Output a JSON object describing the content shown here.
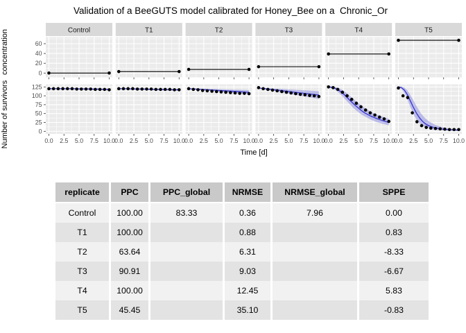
{
  "title": "Validation of a BeeGUTS model calibrated for Honey_Bee on a  Chronic_Or",
  "chart_data": {
    "type": "line",
    "title": "Validation of a BeeGUTS model calibrated for Honey_Bee on a  Chronic_Or",
    "xlabel": "Time [d]",
    "x_ticks": [
      "0.0",
      "2.5",
      "5.0",
      "7.5",
      "10.0"
    ],
    "top_row": {
      "ylabel": "concentration",
      "yticks": [
        0,
        20,
        40,
        60
      ],
      "ylim": [
        0,
        73
      ]
    },
    "bottom_row": {
      "ylabel": "Number of survivors",
      "yticks": [
        0,
        25,
        50,
        75,
        100,
        125
      ],
      "ylim": [
        0,
        132
      ]
    },
    "legend": "none",
    "grid": "white-on-grey",
    "obs_t": [
      0,
      0.77,
      1.54,
      2.31,
      3.08,
      3.85,
      4.62,
      5.38,
      6.15,
      6.92,
      7.69,
      8.46,
      9.23,
      10
    ],
    "facets": [
      {
        "label": "Control",
        "concentration": 0,
        "obs_n": [
          120,
          120,
          120,
          120,
          120,
          120,
          119,
          119,
          119,
          119,
          118,
          118,
          118,
          117
        ],
        "fit_t": [
          0,
          1,
          2,
          3,
          4,
          5,
          6,
          7,
          8,
          9,
          10
        ],
        "fit_median": [
          120,
          120,
          120,
          120,
          120,
          119.5,
          119.5,
          119,
          119,
          118.5,
          118
        ],
        "fit_lo": [
          119,
          119,
          118.5,
          118.5,
          118,
          117.5,
          117,
          116.5,
          116,
          115.5,
          115
        ],
        "fit_hi": [
          121,
          121,
          121,
          120.5,
          120.5,
          120.5,
          120,
          120,
          120,
          119.5,
          119.5
        ]
      },
      {
        "label": "T1",
        "concentration": 3,
        "obs_n": [
          120,
          120,
          120,
          120,
          119,
          119,
          119,
          119,
          118,
          118,
          118,
          118,
          117,
          117
        ],
        "fit_t": [
          0,
          1,
          2,
          3,
          4,
          5,
          6,
          7,
          8,
          9,
          10
        ],
        "fit_median": [
          120,
          120,
          119.5,
          119,
          119,
          118.5,
          118,
          118,
          117.5,
          117,
          117
        ],
        "fit_lo": [
          119,
          118.5,
          118,
          117.5,
          117,
          116.5,
          116,
          115.5,
          115,
          114.5,
          114
        ],
        "fit_hi": [
          121,
          121,
          120.5,
          120.5,
          120,
          120,
          119.5,
          119.5,
          119,
          119,
          118.5
        ]
      },
      {
        "label": "T2",
        "concentration": 7.5,
        "obs_n": [
          120,
          118,
          117,
          115,
          114,
          113,
          112,
          111,
          110,
          109,
          108,
          107,
          107,
          106
        ],
        "fit_t": [
          0,
          1,
          2,
          3,
          4,
          5,
          6,
          7,
          8,
          9,
          10
        ],
        "fit_median": [
          120,
          119,
          118,
          117,
          116,
          115,
          114,
          113,
          112,
          111,
          110
        ],
        "fit_lo": [
          119,
          117.5,
          116,
          114.5,
          113,
          111.5,
          110,
          108.5,
          107,
          105.5,
          104
        ],
        "fit_hi": [
          121,
          120.5,
          120,
          119.5,
          119,
          118.5,
          118,
          117.5,
          117,
          116.5,
          116
        ]
      },
      {
        "label": "T3",
        "concentration": 13,
        "obs_n": [
          123,
          120,
          118,
          116,
          114,
          112,
          110,
          108,
          106,
          104,
          103,
          101,
          100,
          98
        ],
        "fit_t": [
          0,
          1,
          2,
          3,
          4,
          5,
          6,
          7,
          8,
          9,
          10
        ],
        "fit_median": [
          122,
          120,
          118,
          116,
          114,
          112,
          110,
          108,
          106,
          104,
          102
        ],
        "fit_lo": [
          121,
          118,
          115,
          112,
          109,
          106,
          103,
          100,
          97,
          94,
          91
        ],
        "fit_hi": [
          123,
          122,
          121,
          120,
          119,
          118,
          117,
          116,
          115,
          114,
          113
        ]
      },
      {
        "label": "T4",
        "concentration": 39,
        "obs_n": [
          125,
          123,
          118,
          110,
          100,
          90,
          79,
          69,
          60,
          52,
          46,
          40,
          35,
          28
        ],
        "fit_t": [
          0,
          0.5,
          1,
          1.5,
          2,
          2.5,
          3,
          3.5,
          4,
          4.5,
          5,
          5.5,
          6,
          7,
          8,
          9,
          10
        ],
        "fit_median": [
          125,
          124,
          122,
          118,
          112,
          105,
          97,
          88,
          80,
          72,
          65,
          58,
          52,
          43,
          36,
          30,
          25
        ],
        "fit_lo": [
          124,
          122,
          118,
          112,
          104,
          95,
          86,
          77,
          68,
          60,
          53,
          47,
          42,
          33,
          26,
          21,
          17
        ],
        "fit_hi": [
          126,
          126,
          125,
          123,
          119,
          114,
          108,
          101,
          93,
          86,
          79,
          72,
          66,
          55,
          47,
          41,
          35
        ]
      },
      {
        "label": "T5",
        "concentration": 67,
        "obs_n": [
          122,
          100,
          95,
          52,
          27,
          16,
          11,
          9,
          8,
          7,
          6,
          5,
          5,
          5
        ],
        "fit_t": [
          0,
          0.5,
          1,
          1.5,
          2,
          2.5,
          3,
          3.5,
          4,
          4.5,
          5,
          6,
          7,
          8,
          9,
          10
        ],
        "fit_median": [
          125,
          123,
          116,
          103,
          85,
          67,
          51,
          38,
          28,
          21,
          16,
          10,
          7,
          5,
          4,
          3
        ],
        "fit_lo": [
          124,
          120,
          108,
          90,
          68,
          48,
          33,
          23,
          16,
          11,
          8,
          4,
          3,
          2,
          2,
          1
        ],
        "fit_hi": [
          126,
          126,
          123,
          115,
          102,
          87,
          71,
          57,
          45,
          36,
          29,
          19,
          13,
          9,
          7,
          6
        ]
      }
    ]
  },
  "table": {
    "headers": [
      "replicate",
      "PPC",
      "PPC_global",
      "NRMSE",
      "NRMSE_global",
      "SPPE"
    ],
    "rows": [
      [
        "Control",
        "100.00",
        "83.33",
        "0.36",
        "7.96",
        "0.00"
      ],
      [
        "T1",
        "100.00",
        "",
        "0.88",
        "",
        "0.83"
      ],
      [
        "T2",
        "63.64",
        "",
        "6.31",
        "",
        "-8.33"
      ],
      [
        "T3",
        "90.91",
        "",
        "9.03",
        "",
        "-6.67"
      ],
      [
        "T4",
        "100.00",
        "",
        "12.45",
        "",
        "5.83"
      ],
      [
        "T5",
        "45.45",
        "",
        "35.10",
        "",
        "-0.83"
      ]
    ]
  },
  "colors": {
    "fit_line": "#3434CE",
    "fit_ribbon": "rgba(70,70,215,0.30)",
    "obs_point": "#000000",
    "conc_line": "#000000",
    "panel_bg": "#EBEBEB",
    "strip_bg": "#D9D9D9",
    "gridline": "#FFFFFF",
    "tick_text": "#4D4D4D",
    "table_header_bg": "#C9C9C9",
    "table_row_light": "#F1F1F1",
    "table_row_dark": "#E3E3E3"
  }
}
